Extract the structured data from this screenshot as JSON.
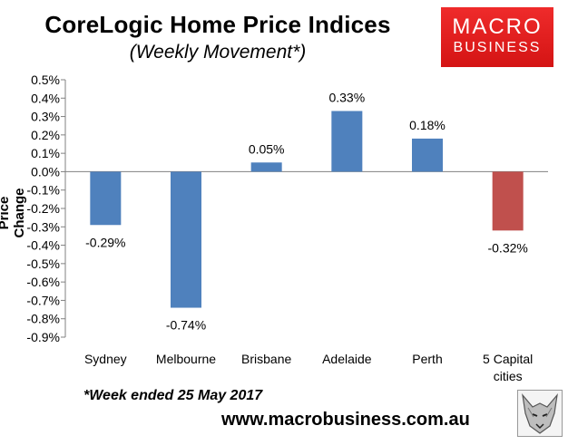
{
  "header": {
    "title": "CoreLogic Home Price Indices",
    "subtitle": "(Weekly Movement*)"
  },
  "logo": {
    "line1": "MACRO",
    "line2": "BUSINESS",
    "color": "#e11f1f"
  },
  "footer": {
    "note": "*Week ended 25 May 2017",
    "site": "www.macrobusiness.com.au",
    "badge_icon": "wolf-icon"
  },
  "chart_data": {
    "type": "bar",
    "ylabel": "Price Change",
    "categories": [
      "Sydney",
      "Melbourne",
      "Brisbane",
      "Adelaide",
      "Perth",
      "5 Capital\ncities"
    ],
    "values": [
      -0.29,
      -0.74,
      0.05,
      0.33,
      0.18,
      -0.32
    ],
    "data_labels": [
      "-0.29%",
      "-0.74%",
      "0.05%",
      "0.33%",
      "0.18%",
      "-0.32%"
    ],
    "colors": [
      "#4f81bd",
      "#4f81bd",
      "#4f81bd",
      "#4f81bd",
      "#4f81bd",
      "#c0504d"
    ],
    "ylim": [
      -0.9,
      0.5
    ],
    "yticks": [
      0.5,
      0.4,
      0.3,
      0.2,
      0.1,
      0.0,
      -0.1,
      -0.2,
      -0.3,
      -0.4,
      -0.5,
      -0.6,
      -0.7,
      -0.8,
      -0.9
    ],
    "ytick_labels": [
      "0.5%",
      "0.4%",
      "0.3%",
      "0.2%",
      "0.1%",
      "0.0%",
      "-0.1%",
      "-0.2%",
      "-0.3%",
      "-0.4%",
      "-0.5%",
      "-0.6%",
      "-0.7%",
      "-0.8%",
      "-0.9%"
    ],
    "grid": false,
    "legend": "none"
  }
}
